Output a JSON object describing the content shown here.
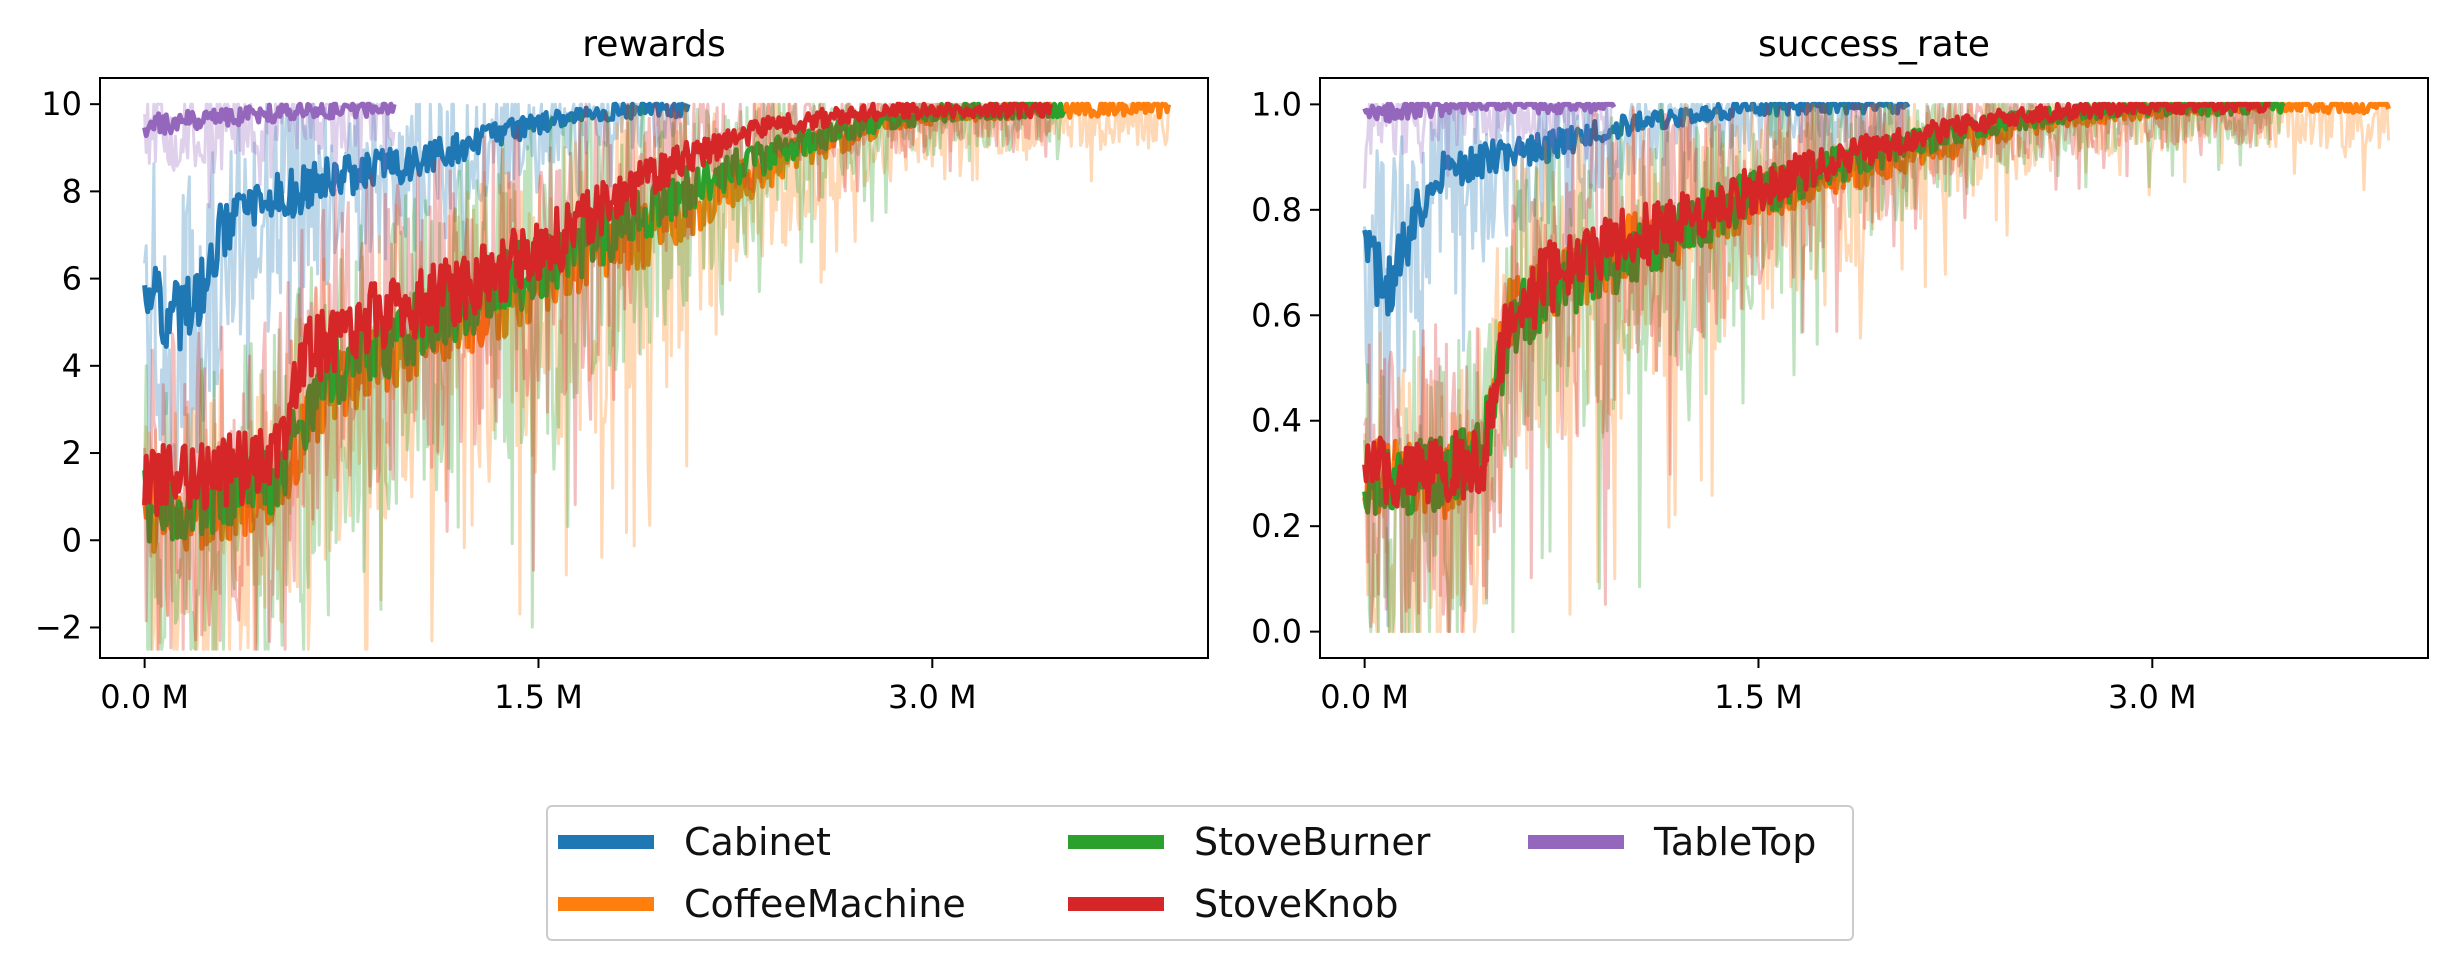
{
  "chart_data": [
    {
      "type": "line",
      "title": "rewards",
      "xlabel": "",
      "ylabel": "",
      "x_unit": "M",
      "xlim": [
        -0.17,
        4.05
      ],
      "ylim": [
        -2.7,
        10.6
      ],
      "xticks": [
        0.0,
        1.5,
        3.0
      ],
      "xtick_labels": [
        "0.0 M",
        "1.5 M",
        "3.0 M"
      ],
      "yticks": [
        -2,
        0,
        2,
        4,
        6,
        8,
        10
      ],
      "ytick_labels": [
        "−2",
        "0",
        "2",
        "4",
        "6",
        "8",
        "10"
      ],
      "grid": false,
      "series": [
        {
          "name": "Cabinet",
          "color": "#1f77b4",
          "x": [
            0.0,
            0.1,
            0.2,
            0.3,
            0.5,
            0.7,
            1.0,
            1.2,
            1.4,
            1.6,
            1.8,
            2.0,
            2.07
          ],
          "y": [
            5.8,
            5.0,
            5.6,
            7.2,
            7.8,
            8.3,
            8.6,
            9.0,
            9.4,
            9.7,
            9.85,
            9.9,
            9.9
          ]
        },
        {
          "name": "CoffeeMachine",
          "color": "#ff7f0e",
          "x": [
            0.0,
            0.3,
            0.5,
            0.7,
            1.0,
            1.3,
            1.6,
            1.9,
            2.2,
            2.5,
            2.8,
            3.1,
            3.4,
            3.9
          ],
          "y": [
            0.5,
            0.7,
            1.2,
            3.5,
            4.5,
            5.3,
            6.2,
            7.0,
            8.0,
            8.9,
            9.5,
            9.8,
            9.9,
            9.9
          ]
        },
        {
          "name": "StoveBurner",
          "color": "#2ca02c",
          "x": [
            0.0,
            0.3,
            0.5,
            0.7,
            1.0,
            1.3,
            1.6,
            1.9,
            2.2,
            2.5,
            2.8,
            3.1,
            3.5
          ],
          "y": [
            0.8,
            0.9,
            1.4,
            3.8,
            4.8,
            5.6,
            6.6,
            7.5,
            8.4,
            9.1,
            9.6,
            9.85,
            9.9
          ]
        },
        {
          "name": "StoveKnob",
          "color": "#d62728",
          "x": [
            0.0,
            0.2,
            0.5,
            0.6,
            0.8,
            1.0,
            1.3,
            1.6,
            1.9,
            2.1,
            2.4,
            2.7,
            3.0,
            3.45
          ],
          "y": [
            1.3,
            1.5,
            1.8,
            4.2,
            5.0,
            5.3,
            6.0,
            7.0,
            8.2,
            8.9,
            9.5,
            9.8,
            9.9,
            9.9
          ]
        },
        {
          "name": "TableTop",
          "color": "#9467bd",
          "x": [
            0.0,
            0.2,
            0.4,
            0.6,
            0.8,
            0.95
          ],
          "y": [
            9.5,
            9.65,
            9.75,
            9.85,
            9.9,
            9.95
          ]
        }
      ]
    },
    {
      "type": "line",
      "title": "success_rate",
      "xlabel": "",
      "ylabel": "",
      "x_unit": "M",
      "xlim": [
        -0.17,
        4.05
      ],
      "ylim": [
        -0.05,
        1.05
      ],
      "xticks": [
        0.0,
        1.5,
        3.0
      ],
      "xtick_labels": [
        "0.0 M",
        "1.5 M",
        "3.0 M"
      ],
      "yticks": [
        0.0,
        0.2,
        0.4,
        0.6,
        0.8,
        1.0
      ],
      "ytick_labels": [
        "0.0",
        "0.2",
        "0.4",
        "0.6",
        "0.8",
        "1.0"
      ],
      "grid": false,
      "series": [
        {
          "name": "Cabinet",
          "color": "#1f77b4",
          "x": [
            0.0,
            0.1,
            0.2,
            0.3,
            0.5,
            0.7,
            0.9,
            1.1,
            1.4,
            1.7,
            2.0,
            2.07
          ],
          "y": [
            0.7,
            0.65,
            0.8,
            0.87,
            0.9,
            0.92,
            0.95,
            0.97,
            0.99,
            1.0,
            1.0,
            1.0
          ]
        },
        {
          "name": "CoffeeMachine",
          "color": "#ff7f0e",
          "x": [
            0.0,
            0.3,
            0.45,
            0.55,
            0.7,
            1.0,
            1.3,
            1.6,
            1.9,
            2.2,
            2.5,
            2.8,
            3.2,
            3.9
          ],
          "y": [
            0.3,
            0.28,
            0.35,
            0.6,
            0.66,
            0.72,
            0.78,
            0.84,
            0.88,
            0.92,
            0.96,
            0.98,
            1.0,
            1.0
          ]
        },
        {
          "name": "StoveBurner",
          "color": "#2ca02c",
          "x": [
            0.0,
            0.3,
            0.45,
            0.55,
            0.7,
            1.0,
            1.3,
            1.6,
            1.9,
            2.2,
            2.5,
            2.8,
            3.5
          ],
          "y": [
            0.28,
            0.3,
            0.34,
            0.58,
            0.65,
            0.72,
            0.79,
            0.85,
            0.9,
            0.94,
            0.97,
            0.99,
            1.0
          ]
        },
        {
          "name": "StoveKnob",
          "color": "#d62728",
          "x": [
            0.0,
            0.2,
            0.45,
            0.55,
            0.7,
            1.0,
            1.3,
            1.6,
            1.9,
            2.2,
            2.5,
            3.0,
            3.45
          ],
          "y": [
            0.3,
            0.3,
            0.33,
            0.6,
            0.67,
            0.74,
            0.8,
            0.86,
            0.91,
            0.95,
            0.98,
            1.0,
            1.0
          ]
        },
        {
          "name": "TableTop",
          "color": "#9467bd",
          "x": [
            0.0,
            0.2,
            0.4,
            0.6,
            0.8,
            0.95
          ],
          "y": [
            0.98,
            0.99,
            1.0,
            1.0,
            1.0,
            1.0
          ]
        }
      ]
    }
  ],
  "legend": {
    "placement": "bottom-center",
    "items": [
      {
        "label": "Cabinet",
        "color": "#1f77b4"
      },
      {
        "label": "CoffeeMachine",
        "color": "#ff7f0e"
      },
      {
        "label": "StoveBurner",
        "color": "#2ca02c"
      },
      {
        "label": "StoveKnob",
        "color": "#d62728"
      },
      {
        "label": "TableTop",
        "color": "#9467bd"
      }
    ]
  }
}
